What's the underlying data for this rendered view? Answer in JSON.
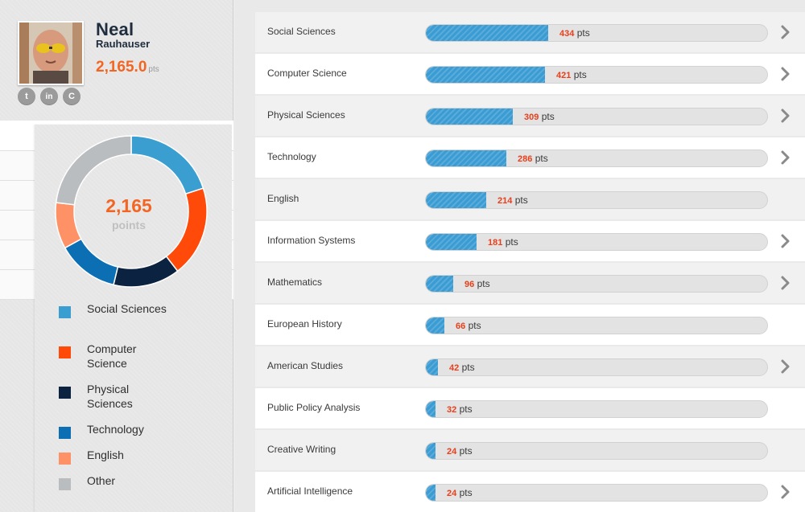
{
  "profile": {
    "first_name": "Neal",
    "last_name": "Rauhauser",
    "points": "2,165.0",
    "points_unit": "pts",
    "social": [
      {
        "icon": "twitter-icon",
        "glyph": "t"
      },
      {
        "icon": "linkedin-icon",
        "glyph": "in"
      },
      {
        "icon": "klout-icon",
        "glyph": "C"
      }
    ]
  },
  "summary": {
    "total": "2,165",
    "unit": "points",
    "colors": {
      "social_sciences": "#3a9fd0",
      "computer_science": "#ff4a0a",
      "physical_sciences": "#0b2240",
      "technology": "#0d6fb3",
      "english": "#ff9166",
      "other": "#b9bdbf"
    },
    "legend": [
      {
        "label": "Social Sciences",
        "color": "#3a9fd0"
      },
      {
        "label": "Computer Science",
        "color": "#ff4a0a"
      },
      {
        "label": "Physical Sciences",
        "color": "#0b2240"
      },
      {
        "label": "Technology",
        "color": "#0d6fb3"
      },
      {
        "label": "English",
        "color": "#ff9166"
      },
      {
        "label": "Other",
        "color": "#b9bdbf"
      }
    ]
  },
  "subjects_unit": "pts",
  "subjects": [
    {
      "name": "Social Sciences",
      "points": 434,
      "chevron": true
    },
    {
      "name": "Computer Science",
      "points": 421,
      "chevron": true
    },
    {
      "name": "Physical Sciences",
      "points": 309,
      "chevron": true
    },
    {
      "name": "Technology",
      "points": 286,
      "chevron": true
    },
    {
      "name": "English",
      "points": 214,
      "chevron": false
    },
    {
      "name": "Information Systems",
      "points": 181,
      "chevron": true
    },
    {
      "name": "Mathematics",
      "points": 96,
      "chevron": true
    },
    {
      "name": "European History",
      "points": 66,
      "chevron": false
    },
    {
      "name": "American Studies",
      "points": 42,
      "chevron": true
    },
    {
      "name": "Public Policy Analysis",
      "points": 32,
      "chevron": false
    },
    {
      "name": "Creative Writing",
      "points": 24,
      "chevron": false
    },
    {
      "name": "Artificial Intelligence",
      "points": 24,
      "chevron": true
    }
  ],
  "chart_data": {
    "type": "pie",
    "categories": [
      "Social Sciences",
      "Computer Science",
      "Physical Sciences",
      "Technology",
      "English",
      "Other"
    ],
    "values": [
      434,
      421,
      309,
      286,
      214,
      501
    ],
    "total": 2165
  }
}
